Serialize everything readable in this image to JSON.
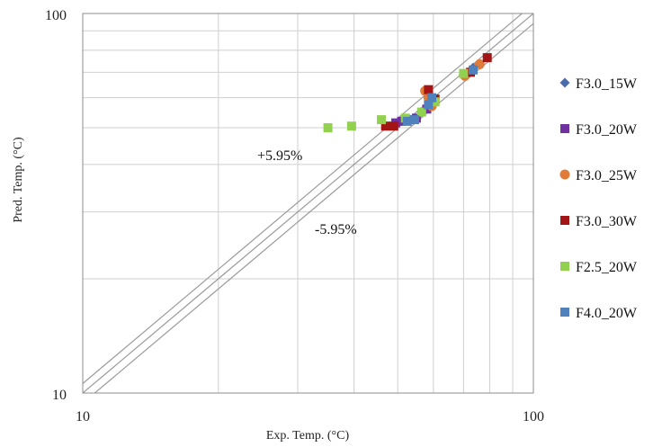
{
  "chart_data": {
    "type": "scatter",
    "xlabel": "Exp. Temp. (°C)",
    "ylabel": "Pred. Temp. (°C)",
    "x_scale": "log",
    "y_scale": "log",
    "xlim": [
      10,
      100
    ],
    "ylim": [
      10,
      100
    ],
    "x_ticks": [
      "10",
      "100"
    ],
    "y_ticks": [
      "100",
      "10"
    ],
    "grid": true,
    "legend_position": "right",
    "annotations": [
      "+5.95%",
      "-5.95%"
    ],
    "reference_lines": [
      {
        "factor": 1.0
      },
      {
        "factor": 1.0595
      },
      {
        "factor": 0.9405
      }
    ],
    "series": [
      {
        "name": "F3.0_15W",
        "marker": "diamond",
        "color": "#4a6cab",
        "points": [
          [
            53.5,
            52.5
          ],
          [
            54.5,
            52.8
          ],
          [
            56.5,
            55.0
          ],
          [
            58.0,
            56.5
          ],
          [
            59.5,
            58.5
          ],
          [
            70.0,
            69.0
          ],
          [
            73.5,
            72.0
          ]
        ]
      },
      {
        "name": "F3.0_20W",
        "marker": "square",
        "color": "#7030a0",
        "points": [
          [
            49.5,
            51.5
          ],
          [
            51.0,
            52.0
          ],
          [
            53.0,
            52.5
          ],
          [
            55.0,
            53.0
          ],
          [
            58.0,
            56.0
          ],
          [
            59.5,
            58.0
          ]
        ]
      },
      {
        "name": "F3.0_25W",
        "marker": "circle",
        "color": "#e07b39",
        "points": [
          [
            57.5,
            62.5
          ],
          [
            58.5,
            60.0
          ],
          [
            59.5,
            57.0
          ],
          [
            70.5,
            68.5
          ],
          [
            76.0,
            73.5
          ]
        ]
      },
      {
        "name": "F3.0_30W",
        "marker": "square",
        "color": "#a31515",
        "points": [
          [
            47.0,
            50.5
          ],
          [
            49.0,
            50.5
          ],
          [
            58.5,
            63.0
          ],
          [
            60.5,
            59.5
          ],
          [
            72.5,
            70.0
          ],
          [
            79.0,
            76.5
          ]
        ]
      },
      {
        "name": "F2.5_20W",
        "marker": "square",
        "color": "#92d050",
        "points": [
          [
            35.0,
            50.0
          ],
          [
            39.5,
            50.5
          ],
          [
            46.0,
            52.5
          ],
          [
            52.0,
            53.0
          ],
          [
            56.5,
            55.0
          ],
          [
            60.5,
            58.5
          ],
          [
            70.0,
            69.5
          ]
        ]
      },
      {
        "name": "F4.0_20W",
        "marker": "square",
        "color": "#4f81bd",
        "points": [
          [
            52.5,
            52.0
          ],
          [
            54.5,
            52.5
          ],
          [
            58.5,
            57.5
          ],
          [
            59.5,
            60.0
          ],
          [
            73.5,
            71.0
          ]
        ]
      }
    ]
  }
}
